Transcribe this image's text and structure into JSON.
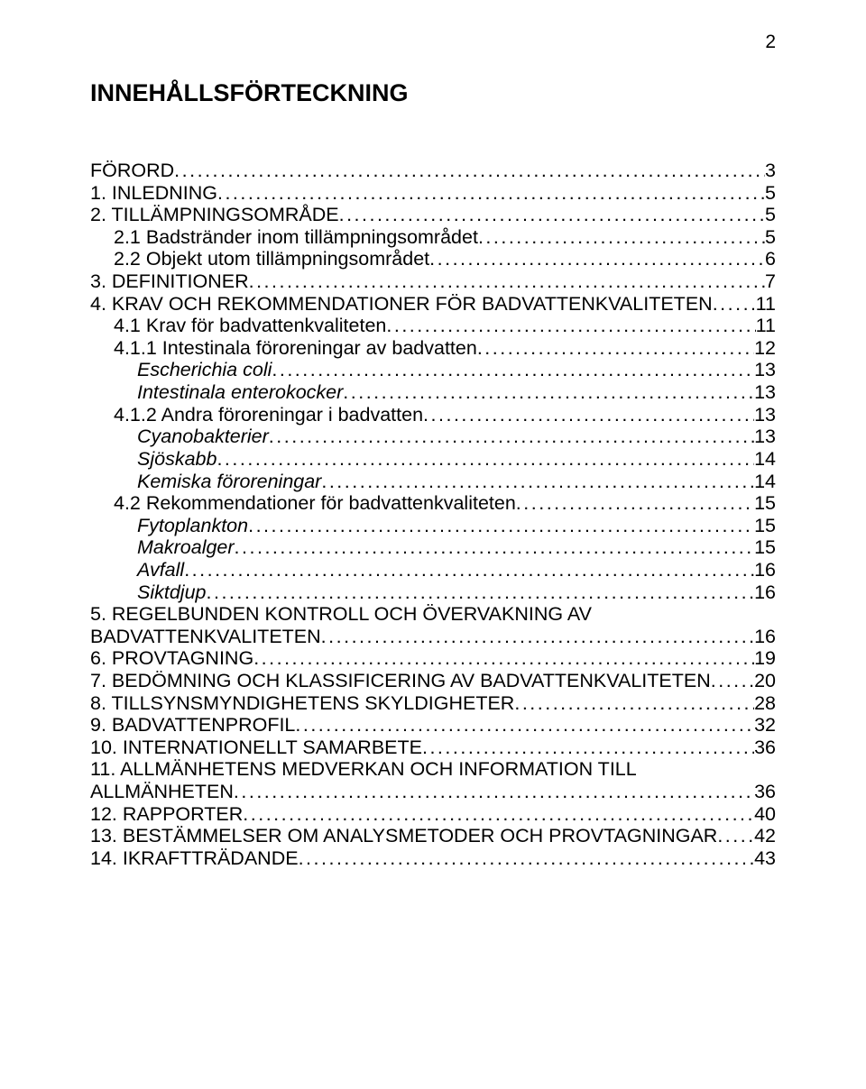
{
  "page_number": "2",
  "title": "INNEHÅLLSFÖRTECKNING",
  "entries": [
    {
      "label": "FÖRORD",
      "page": "3",
      "indent": 0,
      "italic": false
    },
    {
      "label": "1. INLEDNING",
      "page": "5",
      "indent": 0,
      "italic": false
    },
    {
      "label": "2. TILLÄMPNINGSOMRÅDE",
      "page": "5",
      "indent": 0,
      "italic": false
    },
    {
      "label": "2.1 Badstränder inom tillämpningsområdet",
      "page": "5",
      "indent": 1,
      "italic": false
    },
    {
      "label": "2.2 Objekt utom tillämpningsområdet",
      "page": "6",
      "indent": 1,
      "italic": false
    },
    {
      "label": "3. DEFINITIONER",
      "page": "7",
      "indent": 0,
      "italic": false
    },
    {
      "label": "4. KRAV OCH REKOMMENDATIONER FÖR BADVATTENKVALITETEN",
      "page": "11",
      "indent": 0,
      "italic": false
    },
    {
      "label": "4.1 Krav för badvattenkvaliteten",
      "page": "11",
      "indent": 1,
      "italic": false
    },
    {
      "label": "4.1.1 Intestinala föroreningar av badvatten",
      "page": "12",
      "indent": 1,
      "italic": false
    },
    {
      "label": "Escherichia coli",
      "page": "13",
      "indent": 2,
      "italic": true
    },
    {
      "label": "Intestinala enterokocker",
      "page": "13",
      "indent": 2,
      "italic": true
    },
    {
      "label": "4.1.2 Andra föroreningar i badvatten",
      "page": "13",
      "indent": 1,
      "italic": false
    },
    {
      "label": "Cyanobakterier",
      "page": "13",
      "indent": 2,
      "italic": true
    },
    {
      "label": "Sjöskabb",
      "page": "14",
      "indent": 2,
      "italic": true
    },
    {
      "label": "Kemiska föroreningar",
      "page": "14",
      "indent": 2,
      "italic": true
    },
    {
      "label": "4.2 Rekommendationer för badvattenkvaliteten",
      "page": "15",
      "indent": 1,
      "italic": false
    },
    {
      "label": "Fytoplankton",
      "page": "15",
      "indent": 2,
      "italic": true
    },
    {
      "label": "Makroalger",
      "page": "15",
      "indent": 2,
      "italic": true
    },
    {
      "label": "Avfall",
      "page": "16",
      "indent": 2,
      "italic": true
    },
    {
      "label": "Siktdjup",
      "page": "16",
      "indent": 2,
      "italic": true
    },
    {
      "label": "5. REGELBUNDEN KONTROLL OCH ÖVERVAKNING AV BADVATTENKVALITETEN",
      "page": "16",
      "indent": 0,
      "italic": false,
      "wrap": true
    },
    {
      "label": "6. PROVTAGNING",
      "page": "19",
      "indent": 0,
      "italic": false
    },
    {
      "label": "7. BEDÖMNING OCH KLASSIFICERING AV BADVATTENKVALITETEN",
      "page": "20",
      "indent": 0,
      "italic": false
    },
    {
      "label": "8. TILLSYNSMYNDIGHETENS SKYLDIGHETER",
      "page": "28",
      "indent": 0,
      "italic": false
    },
    {
      "label": "9. BADVATTENPROFIL",
      "page": "32",
      "indent": 0,
      "italic": false
    },
    {
      "label": "10. INTERNATIONELLT SAMARBETE",
      "page": "36",
      "indent": 0,
      "italic": false
    },
    {
      "label": "11. ALLMÄNHETENS MEDVERKAN OCH INFORMATION TILL ALLMÄNHETEN",
      "page": "36",
      "indent": 0,
      "italic": false,
      "wrap": true
    },
    {
      "label": "12. RAPPORTER",
      "page": "40",
      "indent": 0,
      "italic": false
    },
    {
      "label": "13. BESTÄMMELSER OM ANALYSMETODER OCH PROVTAGNINGAR",
      "page": "42",
      "indent": 0,
      "italic": false
    },
    {
      "label": "14. IKRAFTTRÄDANDE",
      "page": "43",
      "indent": 0,
      "italic": false
    }
  ]
}
